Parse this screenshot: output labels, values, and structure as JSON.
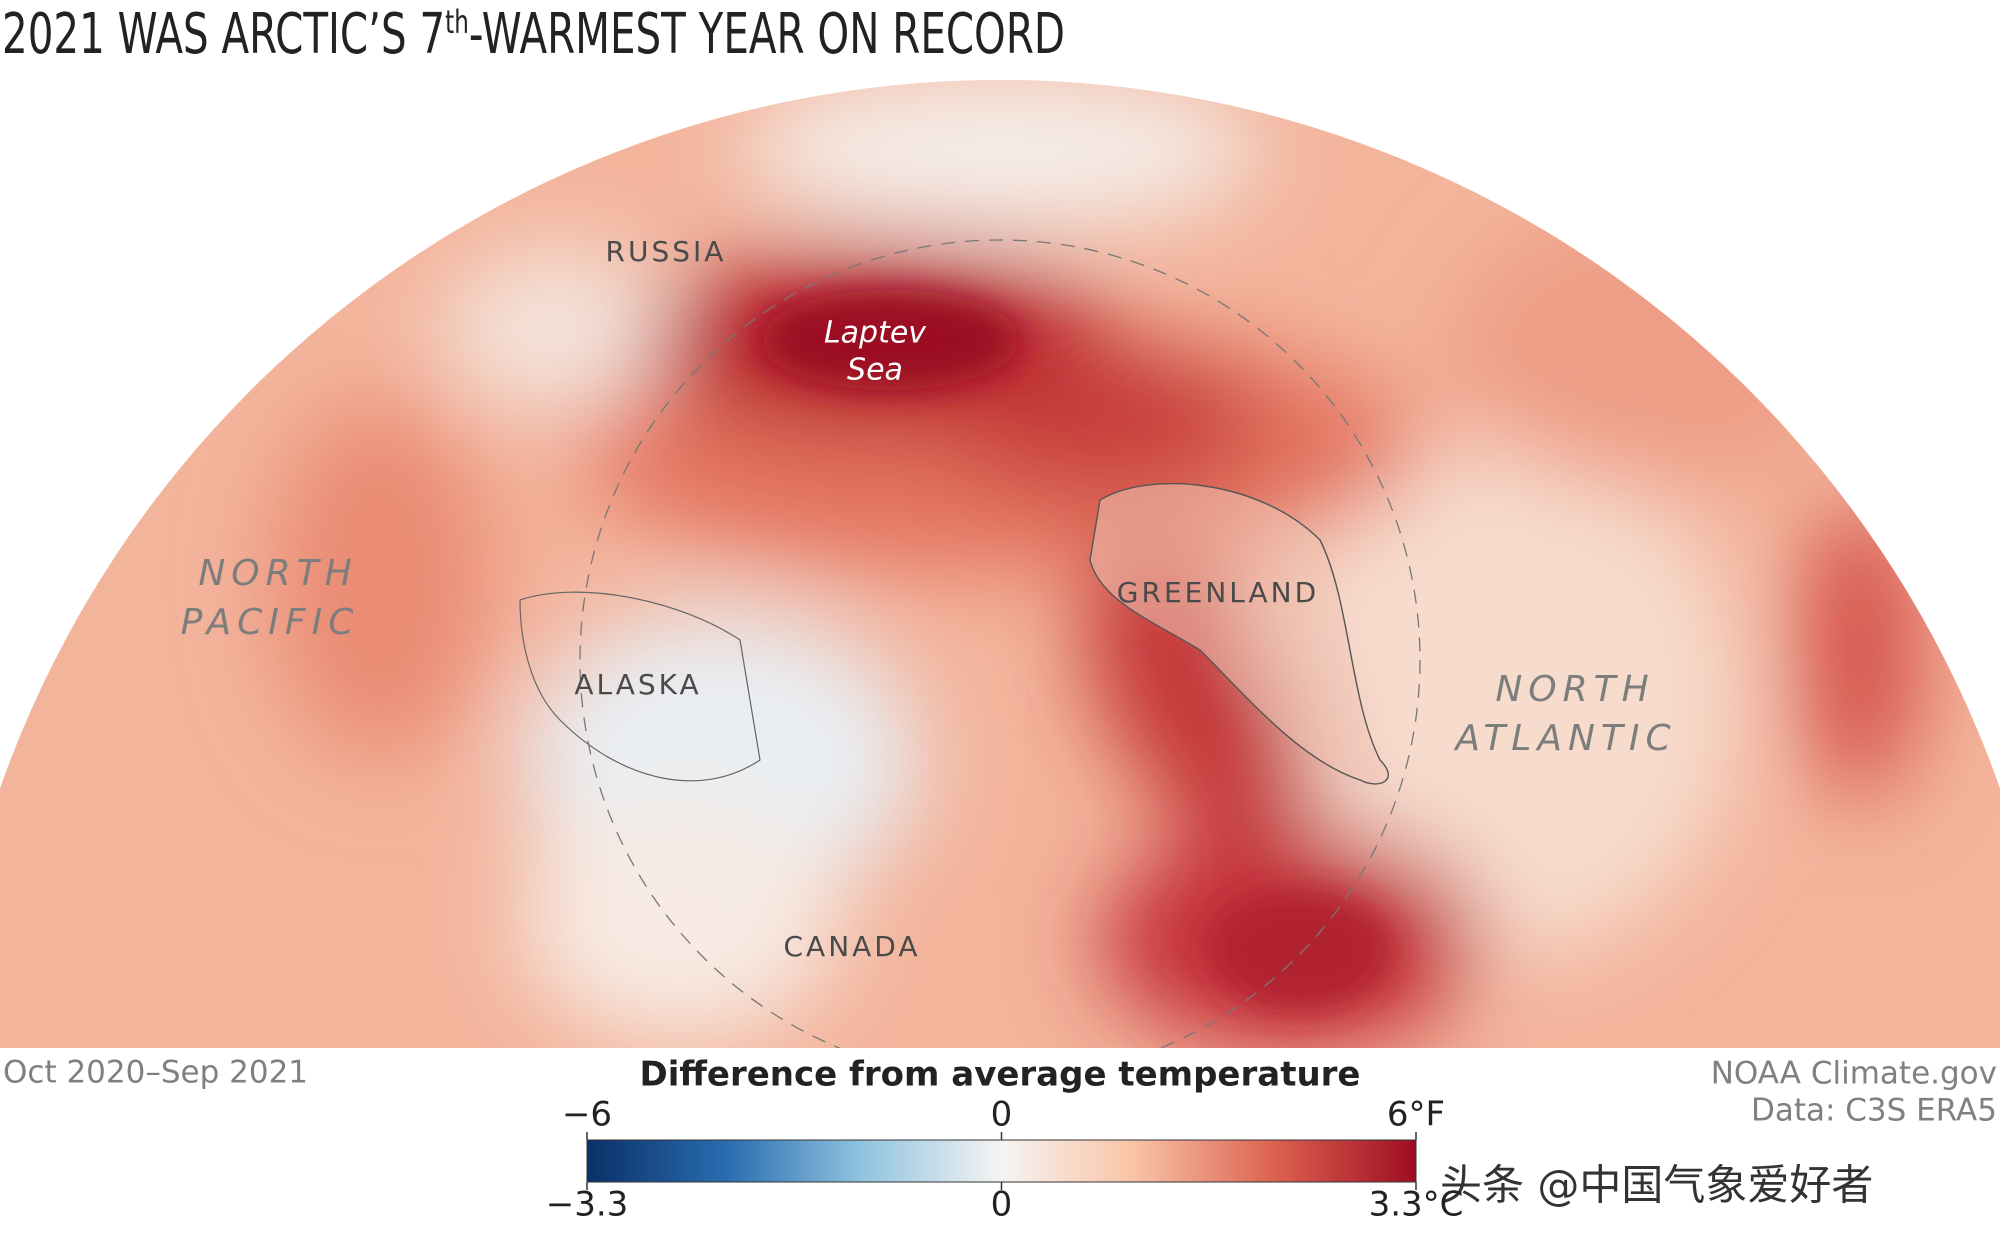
{
  "title": [
    "2021 WAS ARCTIC’S 7",
    "th",
    "-WARMEST YEAR ON RECORD"
  ],
  "labels": {
    "russia": "RUSSIA",
    "laptev_sea": [
      "Laptev",
      "Sea"
    ],
    "north_pacific": [
      "NORTH",
      "PACIFIC"
    ],
    "alaska": "ALASKA",
    "greenland": "GREENLAND",
    "north_atlantic": [
      "NORTH",
      "ATLANTIC"
    ],
    "canada": "CANADA"
  },
  "footer": {
    "period": "Oct 2020–Sep 2021",
    "credit": "NOAA Climate.gov",
    "source": "Data: C3S ERA5"
  },
  "colorbar": {
    "title": "Difference from average temperature",
    "fahrenheit": {
      "lim": [
        -6,
        6
      ],
      "ticks": [
        {
          "value": -6,
          "label": "−6"
        },
        0,
        {
          "value": 6,
          "label": "6°F"
        }
      ]
    },
    "celsius": {
      "lim": [
        -3.3,
        3.3
      ],
      "ticks": [
        {
          "value": -3.3,
          "label": "−3.3"
        },
        0,
        {
          "value": 3.3,
          "label": "3.3°C"
        }
      ]
    }
  },
  "watermark": "头条 @中国气象爱好者"
}
